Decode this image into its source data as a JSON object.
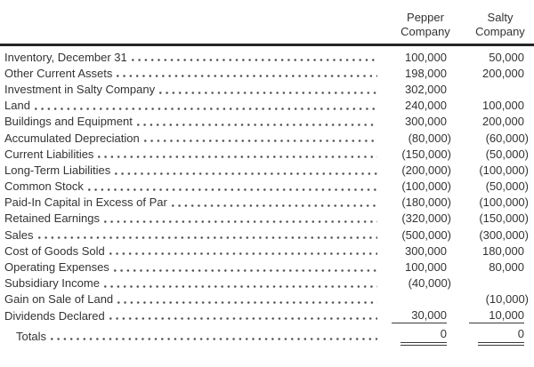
{
  "table": {
    "columns": [
      {
        "id": "pepper",
        "label_line1": "Pepper",
        "label_line2": "Company"
      },
      {
        "id": "salty",
        "label_line1": "Salty",
        "label_line2": "Company"
      }
    ],
    "rows": [
      {
        "label": "Inventory, December 31",
        "pepper": "100,000",
        "salty": "50,000"
      },
      {
        "label": "Other Current Assets",
        "pepper": "198,000",
        "salty": "200,000"
      },
      {
        "label": "Investment in Salty Company",
        "pepper": "302,000",
        "salty": ""
      },
      {
        "label": "Land",
        "pepper": "240,000",
        "salty": "100,000"
      },
      {
        "label": "Buildings and Equipment",
        "pepper": "300,000",
        "salty": "200,000"
      },
      {
        "label": "Accumulated Depreciation",
        "pepper": "(80,000)",
        "salty": "(60,000)"
      },
      {
        "label": "Current Liabilities",
        "pepper": "(150,000)",
        "salty": "(50,000)"
      },
      {
        "label": "Long-Term Liabilities",
        "pepper": "(200,000)",
        "salty": "(100,000)"
      },
      {
        "label": "Common Stock",
        "pepper": "(100,000)",
        "salty": "(50,000)"
      },
      {
        "label": "Paid-In Capital in Excess of Par",
        "pepper": "(180,000)",
        "salty": "(100,000)"
      },
      {
        "label": "Retained Earnings",
        "pepper": "(320,000)",
        "salty": "(150,000)"
      },
      {
        "label": "Sales",
        "pepper": "(500,000)",
        "salty": "(300,000)"
      },
      {
        "label": "Cost of Goods Sold",
        "pepper": "300,000",
        "salty": "180,000"
      },
      {
        "label": "Operating Expenses",
        "pepper": "100,000",
        "salty": "80,000"
      },
      {
        "label": "Subsidiary Income",
        "pepper": "(40,000)",
        "salty": ""
      },
      {
        "label": "Gain on Sale of Land",
        "pepper": "",
        "salty": "(10,000)"
      },
      {
        "label": "Dividends Declared",
        "pepper": "30,000",
        "salty": "10,000",
        "rule": "single"
      },
      {
        "label": "Totals",
        "pepper": "0",
        "salty": "0",
        "rule": "double",
        "indent": true,
        "spacing_before": true
      }
    ],
    "colors": {
      "text": "#333333",
      "rule": "#262626",
      "leader_dot": "#4c4c4c"
    }
  }
}
